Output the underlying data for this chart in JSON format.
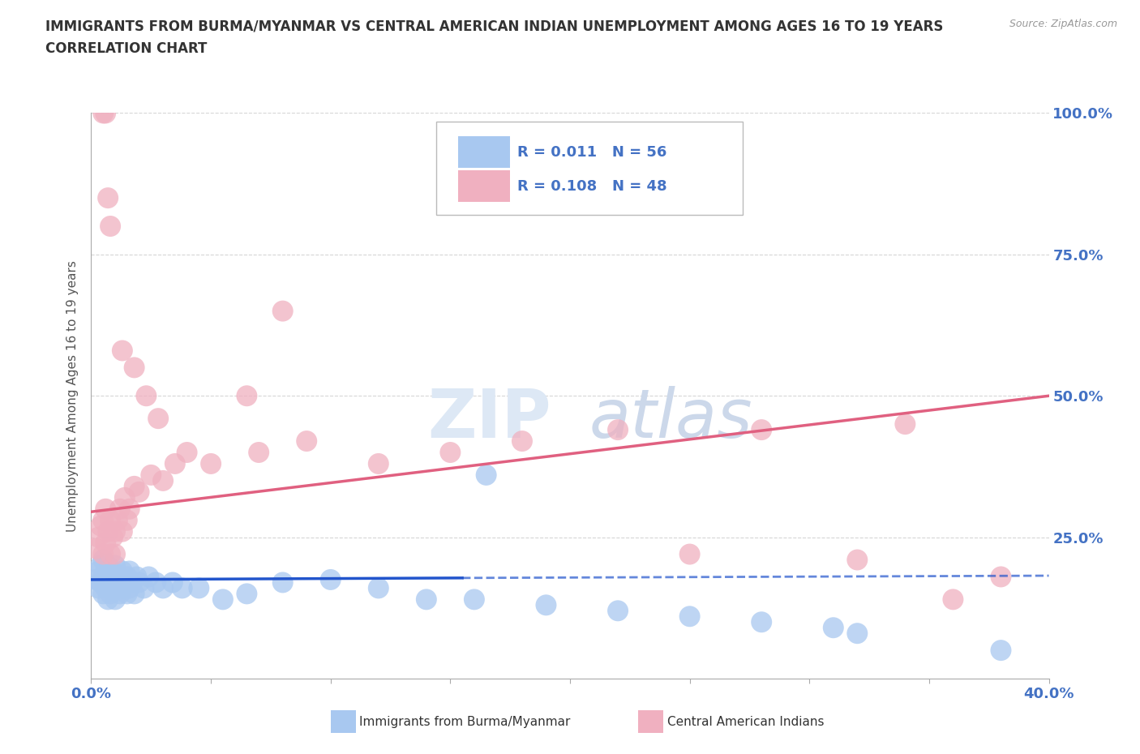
{
  "title_line1": "IMMIGRANTS FROM BURMA/MYANMAR VS CENTRAL AMERICAN INDIAN UNEMPLOYMENT AMONG AGES 16 TO 19 YEARS",
  "title_line2": "CORRELATION CHART",
  "source": "Source: ZipAtlas.com",
  "ylabel": "Unemployment Among Ages 16 to 19 years",
  "xlim": [
    0.0,
    0.4
  ],
  "ylim": [
    0.0,
    1.0
  ],
  "blue_label": "Immigrants from Burma/Myanmar",
  "pink_label": "Central American Indians",
  "blue_color": "#a8c8f0",
  "pink_color": "#f0b0c0",
  "trend_blue_color": "#2255cc",
  "trend_pink_color": "#e06080",
  "watermark_zip": "ZIP",
  "watermark_atlas": "atlas",
  "background_color": "#ffffff",
  "tick_color": "#4472c4",
  "grid_color": "#cccccc",
  "title_color": "#333333",
  "source_color": "#999999",
  "ylabel_color": "#555555",
  "legend_text_color": "#4472c4",
  "blue_scatter_x": [
    0.002,
    0.003,
    0.003,
    0.004,
    0.004,
    0.005,
    0.005,
    0.005,
    0.006,
    0.006,
    0.007,
    0.007,
    0.007,
    0.008,
    0.008,
    0.009,
    0.009,
    0.01,
    0.01,
    0.01,
    0.011,
    0.012,
    0.012,
    0.013,
    0.013,
    0.014,
    0.015,
    0.015,
    0.016,
    0.016,
    0.017,
    0.018,
    0.019,
    0.02,
    0.022,
    0.024,
    0.027,
    0.03,
    0.034,
    0.038,
    0.045,
    0.055,
    0.065,
    0.08,
    0.1,
    0.12,
    0.14,
    0.16,
    0.19,
    0.22,
    0.25,
    0.28,
    0.31,
    0.165,
    0.38,
    0.32
  ],
  "blue_scatter_y": [
    0.175,
    0.16,
    0.19,
    0.17,
    0.2,
    0.15,
    0.18,
    0.21,
    0.16,
    0.19,
    0.14,
    0.17,
    0.2,
    0.15,
    0.18,
    0.16,
    0.19,
    0.14,
    0.17,
    0.2,
    0.16,
    0.15,
    0.18,
    0.16,
    0.19,
    0.17,
    0.15,
    0.18,
    0.16,
    0.19,
    0.17,
    0.15,
    0.18,
    0.17,
    0.16,
    0.18,
    0.17,
    0.16,
    0.17,
    0.16,
    0.16,
    0.14,
    0.15,
    0.17,
    0.175,
    0.16,
    0.14,
    0.14,
    0.13,
    0.12,
    0.11,
    0.1,
    0.09,
    0.36,
    0.05,
    0.08
  ],
  "pink_scatter_x": [
    0.002,
    0.003,
    0.004,
    0.005,
    0.005,
    0.006,
    0.006,
    0.007,
    0.008,
    0.008,
    0.009,
    0.01,
    0.01,
    0.011,
    0.012,
    0.013,
    0.014,
    0.015,
    0.016,
    0.018,
    0.02,
    0.025,
    0.03,
    0.035,
    0.04,
    0.05,
    0.07,
    0.09,
    0.12,
    0.15,
    0.18,
    0.22,
    0.28,
    0.34,
    0.38,
    0.065,
    0.08,
    0.25,
    0.32,
    0.36,
    0.005,
    0.006,
    0.007,
    0.008,
    0.013,
    0.018,
    0.023,
    0.028
  ],
  "pink_scatter_y": [
    0.23,
    0.25,
    0.27,
    0.22,
    0.28,
    0.24,
    0.3,
    0.26,
    0.22,
    0.28,
    0.25,
    0.22,
    0.26,
    0.28,
    0.3,
    0.26,
    0.32,
    0.28,
    0.3,
    0.34,
    0.33,
    0.36,
    0.35,
    0.38,
    0.4,
    0.38,
    0.4,
    0.42,
    0.38,
    0.4,
    0.42,
    0.44,
    0.44,
    0.45,
    0.18,
    0.5,
    0.65,
    0.22,
    0.21,
    0.14,
    1.0,
    1.0,
    0.85,
    0.8,
    0.58,
    0.55,
    0.5,
    0.46
  ],
  "pink_trend_x0": 0.0,
  "pink_trend_y0": 0.295,
  "pink_trend_x1": 0.4,
  "pink_trend_y1": 0.5,
  "blue_trend_solid_x0": 0.0,
  "blue_trend_solid_y0": 0.175,
  "blue_trend_solid_x1": 0.155,
  "blue_trend_solid_y1": 0.178,
  "blue_trend_dashed_x0": 0.155,
  "blue_trend_dashed_y0": 0.178,
  "blue_trend_dashed_x1": 0.4,
  "blue_trend_dashed_y1": 0.182
}
